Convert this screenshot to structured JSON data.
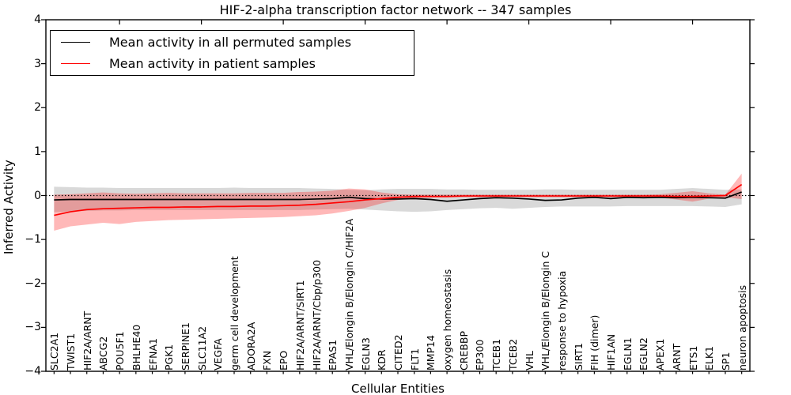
{
  "title": "HIF-2-alpha transcription factor network -- 347 samples",
  "axes": {
    "xlabel": "Cellular Entities",
    "ylabel": "Inferred Activity",
    "yticks": [
      "4",
      "3",
      "2",
      "1",
      "0",
      "−1",
      "−2",
      "−3",
      "−4"
    ]
  },
  "legend": {
    "items": [
      {
        "label": "Mean activity in all permuted samples",
        "color": "#000000"
      },
      {
        "label": "Mean activity in patient samples",
        "color": "#ff0000"
      }
    ]
  },
  "chart_data": {
    "type": "line",
    "title": "HIF-2-alpha transcription factor network -- 347 samples",
    "xlabel": "Cellular Entities",
    "ylabel": "Inferred Activity",
    "ylim": [
      -4,
      4
    ],
    "ytick_values": [
      4,
      3,
      2,
      1,
      0,
      -1,
      -2,
      -3,
      -4
    ],
    "grid": false,
    "legend_position": "upper left",
    "zero_reference_line": {
      "y": 0,
      "style": "dotted",
      "color": "#000000"
    },
    "categories": [
      "SLC2A1",
      "TWIST1",
      "HIF2A/ARNT",
      "ABCG2",
      "POU5F1",
      "BHLHE40",
      "EFNA1",
      "PGK1",
      "SERPINE1",
      "SLC11A2",
      "VEGFA",
      "germ cell development",
      "ADORA2A",
      "FXN",
      "EPO",
      "HIF2A/ARNT/SIRT1",
      "HIF2A/ARNT/Cbp/p300",
      "EPAS1",
      "VHL/Elongin B/Elongin C/HIF2A",
      "EGLN3",
      "KDR",
      "CITED2",
      "FLT1",
      "MMP14",
      "oxygen homeostasis",
      "CREBBP",
      "EP300",
      "TCEB1",
      "TCEB2",
      "VHL",
      "VHL/Elongin B/Elongin C",
      "response to hypoxia",
      "SIRT1",
      "FIH (dimer)",
      "HIF1AN",
      "EGLN1",
      "EGLN2",
      "APEX1",
      "ARNT",
      "ETS1",
      "ELK1",
      "SP1",
      "neuron apoptosis"
    ],
    "series": [
      {
        "name": "Mean activity in all permuted samples",
        "color": "#000000",
        "values": [
          -0.1,
          -0.09,
          -0.09,
          -0.09,
          -0.09,
          -0.09,
          -0.09,
          -0.09,
          -0.09,
          -0.09,
          -0.09,
          -0.09,
          -0.09,
          -0.09,
          -0.09,
          -0.09,
          -0.08,
          -0.07,
          -0.04,
          -0.07,
          -0.08,
          -0.08,
          -0.07,
          -0.09,
          -0.13,
          -0.1,
          -0.07,
          -0.05,
          -0.06,
          -0.08,
          -0.11,
          -0.1,
          -0.06,
          -0.04,
          -0.07,
          -0.04,
          -0.05,
          -0.04,
          -0.05,
          -0.04,
          -0.05,
          -0.06,
          0.08
        ]
      },
      {
        "name": "Mean activity in patient samples",
        "color": "#ff0000",
        "values": [
          -0.45,
          -0.37,
          -0.32,
          -0.3,
          -0.29,
          -0.28,
          -0.27,
          -0.27,
          -0.26,
          -0.26,
          -0.25,
          -0.25,
          -0.24,
          -0.24,
          -0.23,
          -0.22,
          -0.2,
          -0.17,
          -0.14,
          -0.1,
          -0.07,
          -0.04,
          -0.02,
          -0.02,
          -0.02,
          -0.01,
          -0.01,
          -0.01,
          -0.01,
          -0.01,
          -0.01,
          -0.01,
          -0.01,
          -0.01,
          -0.01,
          -0.01,
          -0.01,
          -0.01,
          -0.02,
          -0.02,
          -0.01,
          0.0,
          0.25
        ]
      }
    ],
    "bands": [
      {
        "name": "permuted samples spread",
        "color": "#808080",
        "opacity": 0.3,
        "upper": [
          0.2,
          0.19,
          0.18,
          0.18,
          0.17,
          0.17,
          0.17,
          0.17,
          0.17,
          0.17,
          0.17,
          0.18,
          0.17,
          0.17,
          0.17,
          0.17,
          0.16,
          0.15,
          0.13,
          0.12,
          0.14,
          0.15,
          0.15,
          0.15,
          0.14,
          0.14,
          0.13,
          0.13,
          0.13,
          0.13,
          0.14,
          0.14,
          0.13,
          0.13,
          0.13,
          0.13,
          0.13,
          0.13,
          0.15,
          0.17,
          0.15,
          0.13,
          0.14
        ],
        "lower": [
          -0.38,
          -0.36,
          -0.35,
          -0.34,
          -0.34,
          -0.33,
          -0.33,
          -0.33,
          -0.33,
          -0.33,
          -0.33,
          -0.33,
          -0.33,
          -0.33,
          -0.33,
          -0.33,
          -0.32,
          -0.31,
          -0.3,
          -0.32,
          -0.34,
          -0.36,
          -0.37,
          -0.36,
          -0.33,
          -0.31,
          -0.29,
          -0.28,
          -0.3,
          -0.28,
          -0.26,
          -0.25,
          -0.25,
          -0.25,
          -0.25,
          -0.24,
          -0.24,
          -0.24,
          -0.24,
          -0.24,
          -0.25,
          -0.26,
          -0.2
        ]
      },
      {
        "name": "patient samples spread",
        "color": "#ff0000",
        "opacity": 0.28,
        "upper": [
          0.02,
          0.03,
          0.05,
          0.07,
          0.05,
          0.04,
          0.05,
          0.06,
          0.05,
          0.05,
          0.05,
          0.05,
          0.06,
          0.06,
          0.06,
          0.08,
          0.09,
          0.11,
          0.16,
          0.14,
          0.07,
          0.03,
          0.02,
          0.02,
          0.02,
          0.02,
          0.02,
          0.02,
          0.02,
          0.02,
          0.02,
          0.02,
          0.02,
          0.02,
          0.02,
          0.02,
          0.02,
          0.03,
          0.06,
          0.1,
          0.05,
          0.02,
          0.5
        ],
        "lower": [
          -0.8,
          -0.7,
          -0.66,
          -0.62,
          -0.65,
          -0.6,
          -0.58,
          -0.56,
          -0.55,
          -0.54,
          -0.53,
          -0.52,
          -0.51,
          -0.5,
          -0.49,
          -0.47,
          -0.45,
          -0.41,
          -0.35,
          -0.28,
          -0.18,
          -0.1,
          -0.06,
          -0.05,
          -0.05,
          -0.04,
          -0.04,
          -0.04,
          -0.04,
          -0.04,
          -0.04,
          -0.04,
          -0.04,
          -0.04,
          -0.04,
          -0.04,
          -0.04,
          -0.05,
          -0.09,
          -0.14,
          -0.07,
          -0.04,
          -0.08
        ]
      }
    ],
    "top_axis_tick_indices": [
      4,
      9,
      14,
      19,
      24,
      29,
      34,
      39
    ]
  }
}
